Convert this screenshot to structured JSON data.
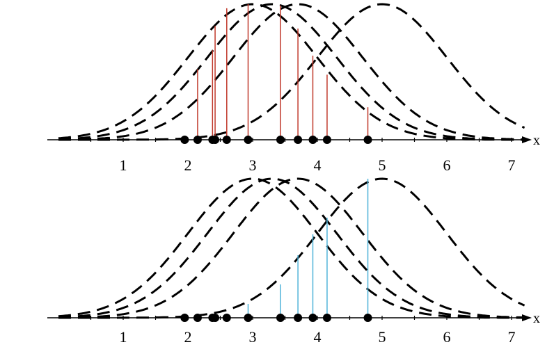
{
  "chart_data": [
    {
      "type": "line",
      "panel": "top",
      "xlabel": "x",
      "x_ticks": [
        1,
        2,
        3,
        4,
        5,
        6,
        7
      ],
      "xlim": [
        0,
        7.2
      ],
      "grid": false,
      "curve_sigma": 1.0,
      "curve_means": [
        3.0,
        3.3,
        3.7,
        5.0
      ],
      "points": [
        1.95,
        2.15,
        2.38,
        2.42,
        2.6,
        2.93,
        3.43,
        3.7,
        3.93,
        4.15,
        4.78
      ],
      "stem_color": "#c0392b",
      "stem_heights": [
        0.52,
        0.66,
        0.84,
        0.97,
        1.0,
        0.99,
        0.82,
        0.62,
        0.48,
        0.24
      ]
    },
    {
      "type": "line",
      "panel": "bottom",
      "xlabel": "x",
      "x_ticks": [
        1,
        2,
        3,
        4,
        5,
        6,
        7
      ],
      "xlim": [
        0,
        7.2
      ],
      "grid": false,
      "curve_sigma": 1.0,
      "curve_means": [
        3.0,
        3.3,
        3.7,
        5.0
      ],
      "points": [
        1.95,
        2.15,
        2.38,
        2.42,
        2.6,
        2.93,
        3.43,
        3.7,
        3.93,
        4.15,
        4.78
      ],
      "stem_color": "#4fb3d9",
      "stem_heights": [
        0.1,
        0.24,
        0.45,
        0.6,
        0.72,
        1.0
      ]
    }
  ]
}
